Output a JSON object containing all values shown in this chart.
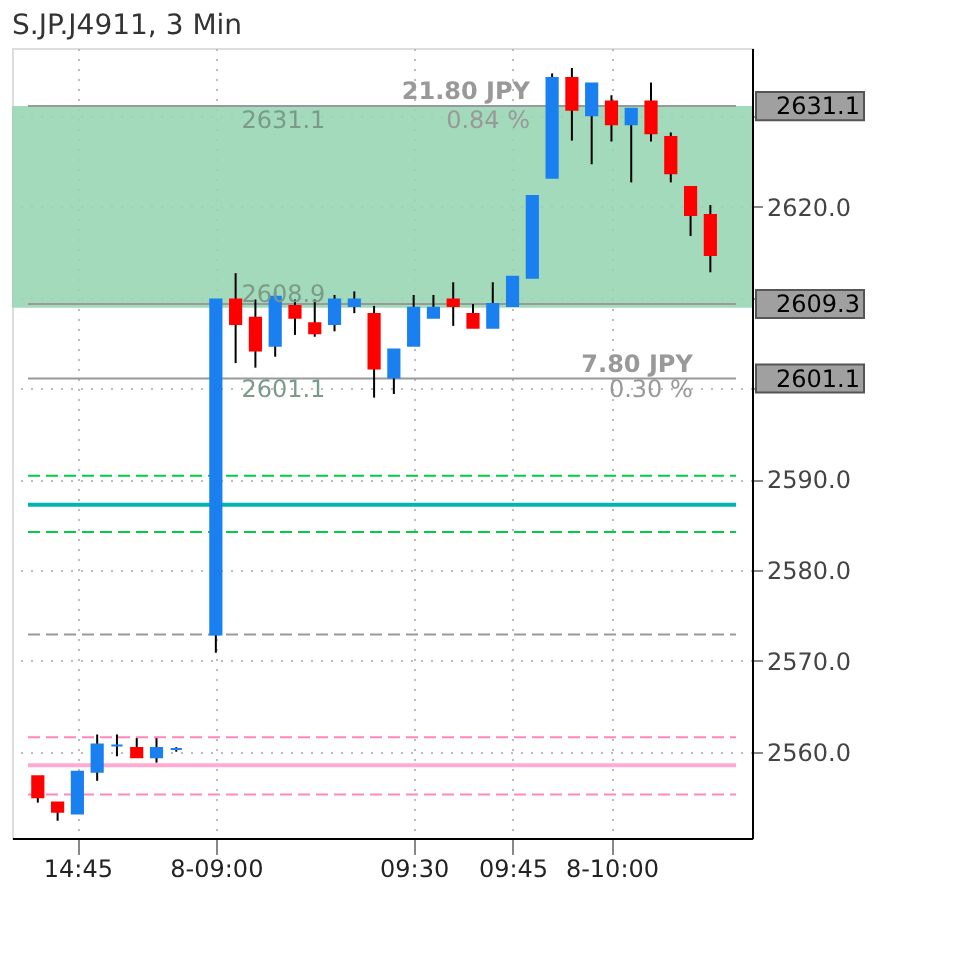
{
  "chart_data": {
    "type": "candlestick",
    "title": "S.JP.J4911, 3 Min",
    "categories": [
      null,
      null,
      "14:45",
      null,
      null,
      null,
      null,
      null,
      null,
      "8-09:00",
      null,
      null,
      null,
      null,
      null,
      null,
      null,
      null,
      null,
      "09:30",
      null,
      null,
      null,
      null,
      "09:45",
      null,
      null,
      null,
      null,
      "8-10:00",
      null,
      null,
      null,
      null,
      null
    ],
    "ohlc": [
      [
        2557.3,
        2557.3,
        2554.4,
        2555.0
      ],
      [
        2554.4,
        2554.4,
        2552.4,
        2553.4
      ],
      [
        2553.2,
        2557.8,
        2553.2,
        2557.8
      ],
      [
        2557.8,
        2561.9,
        2556.8,
        2560.8
      ],
      [
        2560.7,
        2561.9,
        2559.5,
        2560.7
      ],
      [
        2560.4,
        2561.5,
        2559.4,
        2559.4
      ],
      [
        2559.4,
        2561.5,
        2558.8,
        2560.4
      ],
      [
        2560.3,
        2560.5,
        2560.0,
        2560.3
      ],
      null,
      [
        2572.9,
        2609.8,
        2570.9,
        2609.8
      ],
      [
        2609.8,
        2612.7,
        2602.8,
        2607.1
      ],
      [
        2607.8,
        2609.8,
        2602.3,
        2604.2
      ],
      [
        2604.7,
        2610.8,
        2603.5,
        2610.1
      ],
      [
        2609.1,
        2609.8,
        2605.9,
        2607.8
      ],
      [
        2607.2,
        2609.8,
        2605.7,
        2606.1
      ],
      [
        2607.1,
        2610.3,
        2606.3,
        2609.8
      ],
      [
        2609.1,
        2610.7,
        2608.3,
        2609.8
      ],
      [
        2608.2,
        2609.1,
        2599.0,
        2602.2
      ],
      [
        2601.2,
        2604.3,
        2599.4,
        2604.3
      ],
      [
        2604.7,
        2610.3,
        2604.7,
        2608.9
      ],
      [
        2607.8,
        2610.3,
        2607.8,
        2608.9
      ],
      [
        2609.8,
        2611.7,
        2606.9,
        2609.1
      ],
      [
        2608.2,
        2609.3,
        2606.7,
        2606.7
      ],
      [
        2606.7,
        2611.7,
        2606.7,
        2609.3
      ],
      [
        2609.1,
        2612.3,
        2609.1,
        2612.3
      ],
      [
        2612.2,
        2621.2,
        2612.2,
        2621.2
      ],
      [
        2623.2,
        2634.7,
        2623.2,
        2634.2
      ],
      [
        2634.2,
        2635.3,
        2627.3,
        2630.7
      ],
      [
        2630.1,
        2633.6,
        2624.7,
        2633.6
      ],
      [
        2631.6,
        2632.3,
        2627.2,
        2629.1
      ],
      [
        2629.1,
        2630.8,
        2622.7,
        2630.8
      ],
      [
        2631.6,
        2633.7,
        2627.2,
        2628.1
      ],
      [
        2627.7,
        2628.2,
        2622.7,
        2623.7
      ],
      [
        2622.2,
        2622.2,
        2616.8,
        2619.1
      ],
      [
        2619.1,
        2620.2,
        2612.8,
        2614.7
      ]
    ],
    "colors": [
      "#ff0000",
      "#ff0000",
      "#1a80f0",
      "#1a80f0",
      "#1a80f0",
      "#ff0000",
      "#1a80f0",
      "#1a80f0",
      null,
      "#1a80f0",
      "#ff0000",
      "#ff0000",
      "#1a80f0",
      "#ff0000",
      "#ff0000",
      "#1a80f0",
      "#1a80f0",
      "#ff0000",
      "#1a80f0",
      "#1a80f0",
      "#1a80f0",
      "#ff0000",
      "#ff0000",
      "#1a80f0",
      "#1a80f0",
      "#1a80f0",
      "#1a80f0",
      "#ff0000",
      "#1a80f0",
      "#ff0000",
      "#1a80f0",
      "#ff0000",
      "#ff0000",
      "#ff0000",
      "#ff0000"
    ],
    "ylim": [
      2550.5,
      2637.5
    ],
    "yticks": [
      {
        "value": 2560.0,
        "label": "2560.0"
      },
      {
        "value": 2570.0,
        "label": "2570.0"
      },
      {
        "value": 2580.0,
        "label": "2580.0"
      },
      {
        "value": 2590.0,
        "label": "2590.0"
      },
      {
        "value": 2600.0,
        "label": null
      },
      {
        "value": 2610.0,
        "label": null
      },
      {
        "value": 2620.0,
        "label": "2620.0"
      },
      {
        "value": 2630.0,
        "label": null
      }
    ],
    "grid": true,
    "ref_lines": [
      {
        "axis": "y",
        "value": 2631.1,
        "label": "2631.1",
        "color": "#999999",
        "line_style": "solid"
      },
      {
        "axis": "y",
        "value": 2609.3,
        "label": "2609.3",
        "color": "#999999",
        "line_style": "solid"
      },
      {
        "axis": "y",
        "value": 2601.1,
        "label": "2601.1",
        "color": "#999999",
        "line_style": "solid"
      },
      {
        "axis": "y",
        "value": 2590.4,
        "color": "#00cc44",
        "line_style": "dashed"
      },
      {
        "axis": "y",
        "value": 2587.2,
        "color": "#00b4b4",
        "line_style": "solid"
      },
      {
        "axis": "y",
        "value": 2584.2,
        "color": "#00cc44",
        "line_style": "dashed"
      },
      {
        "axis": "y",
        "value": 2572.9,
        "color": "#999999",
        "line_style": "dashed"
      },
      {
        "axis": "y",
        "value": 2561.6,
        "color": "#ff88bb",
        "line_style": "dashed"
      },
      {
        "axis": "y",
        "value": 2558.5,
        "color": "#ffaad0",
        "line_style": "solid"
      },
      {
        "axis": "y",
        "value": 2555.3,
        "color": "#ff88bb",
        "line_style": "dashed"
      }
    ],
    "bands": [
      {
        "axis": "y",
        "from": 2608.9,
        "to": 2631.1,
        "color": "#99d6b4"
      }
    ],
    "annotations": [
      "2631.1",
      "2608.9",
      "2601.1",
      "21.80 JPY",
      "0.84 %",
      "7.80 JPY",
      "0.30 %"
    ]
  }
}
